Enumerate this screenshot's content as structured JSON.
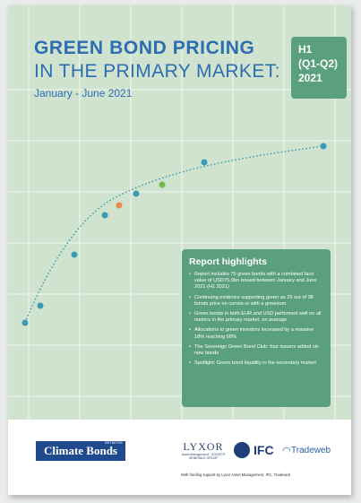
{
  "cover": {
    "title_line1": "GREEN BOND PRICING",
    "title_line2": "IN THE PRIMARY MARKET:",
    "period": "January - June 2021",
    "badge": [
      "H1",
      "(Q1-Q2)",
      "2021"
    ]
  },
  "colors": {
    "cover_bg": "#cfe3cf",
    "title_blue": "#2d6db2",
    "accent_green": "#5aa07e",
    "dot_blue": "#3a9bb5",
    "dot_orange": "#e88a4a",
    "dot_green": "#6dbb46"
  },
  "highlights": {
    "title": "Report highlights",
    "items": [
      "Report includes 75 green bonds with a combined face value of USD75.9bn issued between January and June 2021 (H1 2021)",
      "Continuing evidence supporting green as 29 out of 38 bonds price on curves or with a greenium",
      "Green bonds in both EUR and USD performed well on all metrics in the primary market, on average",
      "Allocations to green investors increased by a massive 18% reaching 68%",
      "The Sovereign Green Bond Club: four issuers added six new bonds",
      "Spotlight: Green bond liquidity in the secondary market"
    ]
  },
  "footer": {
    "climate_bonds": "Climate Bonds",
    "climate_bonds_sup": "INITIATIVE",
    "lyxor": "LYXOR",
    "lyxor_sub": "Asset Management · SOCIETE GENERALE GROUP",
    "ifc": "IFC",
    "tradeweb": "Tradeweb",
    "funding_note": "With funding support by Lyxor Asset Management, IFC, Tradeweb"
  }
}
